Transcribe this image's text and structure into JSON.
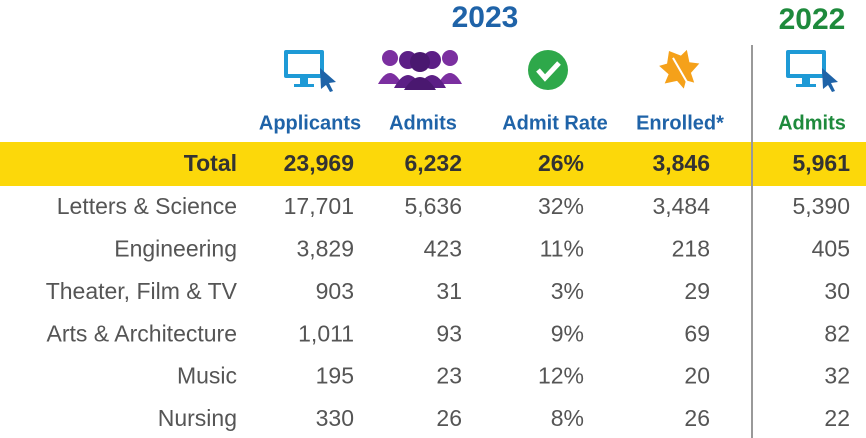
{
  "years": [
    "2023",
    "2022"
  ],
  "columns": [
    "Applicants",
    "Admits",
    "Admit Rate",
    "Enrolled*",
    "Admits"
  ],
  "total": {
    "label": "Total",
    "cells": [
      "23,969",
      "6,232",
      "26%",
      "3,846",
      "5,961"
    ]
  },
  "rows": [
    {
      "label": "Letters & Science",
      "cells": [
        "17,701",
        "5,636",
        "32%",
        "3,484",
        "5,390"
      ]
    },
    {
      "label": "Engineering",
      "cells": [
        "3,829",
        "423",
        "11%",
        "218",
        "405"
      ]
    },
    {
      "label": "Theater, Film & TV",
      "cells": [
        "903",
        "31",
        "3%",
        "29",
        "30"
      ]
    },
    {
      "label": "Arts & Architecture",
      "cells": [
        "1,011",
        "93",
        "9%",
        "69",
        "82"
      ]
    },
    {
      "label": "Music",
      "cells": [
        "195",
        "23",
        "12%",
        "20",
        "32"
      ]
    },
    {
      "label": "Nursing",
      "cells": [
        "330",
        "26",
        "8%",
        "26",
        "22"
      ]
    }
  ]
}
